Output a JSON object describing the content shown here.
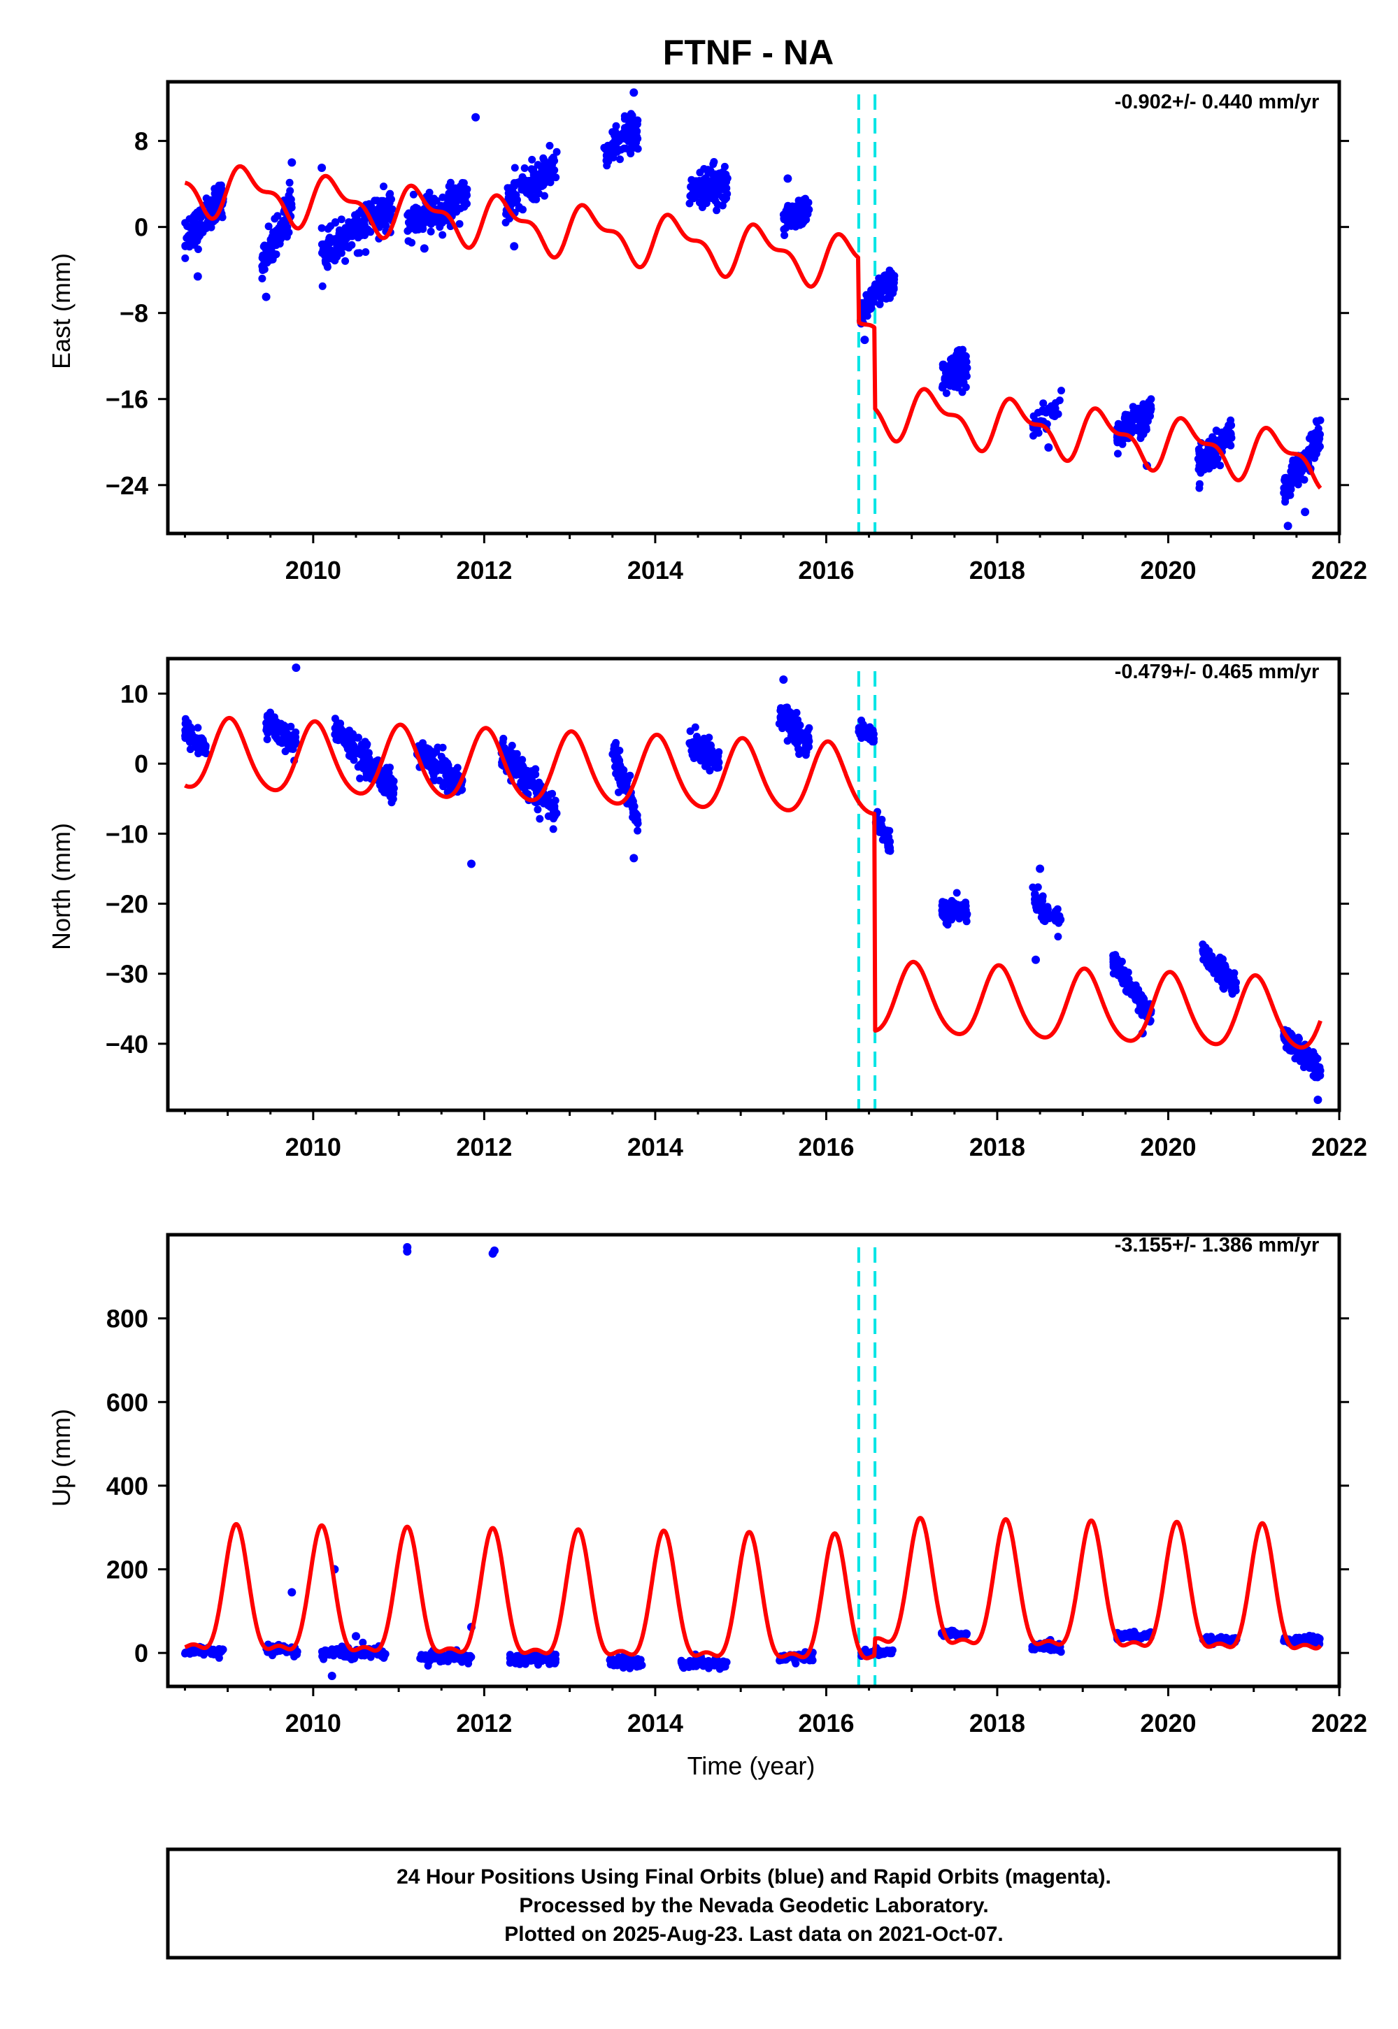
{
  "title": "FTNF - NA",
  "chart_data": [
    {
      "type": "scatter",
      "ylabel": "East (mm)",
      "rate": "-0.902+/- 0.440 mm/yr",
      "xlim": [
        2008.3,
        2022.0
      ],
      "ylim": [
        -28.5,
        13.5
      ],
      "xticks": [
        2010,
        2012,
        2014,
        2016,
        2018,
        2020,
        2022
      ],
      "yticks": [
        8,
        0,
        -8,
        -16,
        -24
      ],
      "ytick_labels": [
        "8",
        "0",
        "−8",
        "−16",
        "−24"
      ],
      "offsets": [
        2016.38,
        2016.57
      ],
      "colors": {
        "observations": "#0000ff",
        "model": "#ff0000",
        "offsets": "#00e5e5"
      },
      "model": {
        "base": 3.8,
        "slope": -0.902,
        "start": 2008.5,
        "end": 2021.78,
        "steps": [
          {
            "t": 2016.38,
            "dy": -6.0
          },
          {
            "t": 2016.57,
            "dy": -7.5
          }
        ],
        "annual_amp": 2.0,
        "annual_phase": 0.25,
        "semiannual_amp": 1.0,
        "semiannual_phase": 0.1
      },
      "clusters": [
        {
          "t0": 2008.5,
          "t1": 2008.95,
          "y0": -1.5,
          "y1": 3.0,
          "spread": 1.6,
          "n": 120
        },
        {
          "t0": 2009.4,
          "t1": 2009.75,
          "y0": -3.5,
          "y1": 2.0,
          "spread": 1.6,
          "n": 110
        },
        {
          "t0": 2010.1,
          "t1": 2010.95,
          "y0": -2.5,
          "y1": 2.0,
          "spread": 1.6,
          "n": 200
        },
        {
          "t0": 2011.1,
          "t1": 2011.8,
          "y0": 0.0,
          "y1": 3.0,
          "spread": 1.6,
          "n": 170
        },
        {
          "t0": 2012.25,
          "t1": 2012.85,
          "y0": 2.0,
          "y1": 6.0,
          "spread": 1.6,
          "n": 150
        },
        {
          "t0": 2013.4,
          "t1": 2013.8,
          "y0": 7.0,
          "y1": 9.0,
          "spread": 1.5,
          "n": 110
        },
        {
          "t0": 2014.4,
          "t1": 2014.85,
          "y0": 3.0,
          "y1": 4.5,
          "spread": 1.6,
          "n": 120
        },
        {
          "t0": 2015.5,
          "t1": 2015.8,
          "y0": 0.5,
          "y1": 1.5,
          "spread": 1.3,
          "n": 80
        },
        {
          "t0": 2016.4,
          "t1": 2016.58,
          "y0": -8.5,
          "y1": -6.0,
          "spread": 1.0,
          "n": 60
        },
        {
          "t0": 2016.6,
          "t1": 2016.8,
          "y0": -6.0,
          "y1": -5.0,
          "spread": 1.2,
          "n": 50
        },
        {
          "t0": 2017.35,
          "t1": 2017.65,
          "y0": -14.0,
          "y1": -13.0,
          "spread": 1.5,
          "n": 90
        },
        {
          "t0": 2018.4,
          "t1": 2018.75,
          "y0": -18.5,
          "y1": -16.5,
          "spread": 1.1,
          "n": 40
        },
        {
          "t0": 2019.4,
          "t1": 2019.8,
          "y0": -19.5,
          "y1": -17.0,
          "spread": 1.3,
          "n": 110
        },
        {
          "t0": 2020.35,
          "t1": 2020.75,
          "y0": -22.0,
          "y1": -19.0,
          "spread": 1.3,
          "n": 110
        },
        {
          "t0": 2021.35,
          "t1": 2021.78,
          "y0": -24.5,
          "y1": -19.5,
          "spread": 1.4,
          "n": 130
        }
      ],
      "outliers": [
        [
          2008.65,
          -4.6
        ],
        [
          2009.45,
          -6.5
        ],
        [
          2009.75,
          6.0
        ],
        [
          2010.1,
          5.5
        ],
        [
          2010.75,
          0.3
        ],
        [
          2011.3,
          -2.0
        ],
        [
          2011.9,
          10.2
        ],
        [
          2012.35,
          -1.8
        ],
        [
          2013.75,
          12.5
        ],
        [
          2015.55,
          4.5
        ],
        [
          2016.45,
          -10.5
        ],
        [
          2018.6,
          -20.5
        ],
        [
          2019.75,
          -22.2
        ],
        [
          2021.4,
          -27.8
        ],
        [
          2021.6,
          -26.5
        ]
      ]
    },
    {
      "type": "scatter",
      "ylabel": "North (mm)",
      "rate": "-0.479+/- 0.465 mm/yr",
      "xlim": [
        2008.3,
        2022.0
      ],
      "ylim": [
        -49.5,
        15.0
      ],
      "xticks": [
        2010,
        2012,
        2014,
        2016,
        2018,
        2020,
        2022
      ],
      "yticks": [
        10,
        0,
        -10,
        -20,
        -30,
        -40
      ],
      "ytick_labels": [
        "10",
        "0",
        "−10",
        "−20",
        "−30",
        "−40"
      ],
      "offsets": [
        2016.38,
        2016.57
      ],
      "colors": {
        "observations": "#0000ff",
        "model": "#ff0000",
        "offsets": "#00e5e5"
      },
      "model": {
        "base": 1.2,
        "slope": -0.479,
        "start": 2008.5,
        "end": 2021.78,
        "steps": [
          {
            "t": 2016.57,
            "dy": -31.0
          }
        ],
        "annual_amp": 5.0,
        "annual_phase": 0.03,
        "semiannual_amp": 0.6,
        "semiannual_phase": 0.0
      },
      "clusters": [
        {
          "t0": 2008.5,
          "t1": 2008.75,
          "y0": 5.0,
          "y1": 1.5,
          "spread": 1.5,
          "n": 70
        },
        {
          "t0": 2009.45,
          "t1": 2009.8,
          "y0": 6.0,
          "y1": 2.5,
          "spread": 1.8,
          "n": 110
        },
        {
          "t0": 2010.25,
          "t1": 2010.95,
          "y0": 5.0,
          "y1": -4.0,
          "spread": 2.0,
          "n": 200
        },
        {
          "t0": 2011.2,
          "t1": 2011.75,
          "y0": 2.0,
          "y1": -3.5,
          "spread": 2.0,
          "n": 150
        },
        {
          "t0": 2012.2,
          "t1": 2012.85,
          "y0": 2.0,
          "y1": -7.0,
          "spread": 2.0,
          "n": 170
        },
        {
          "t0": 2013.5,
          "t1": 2013.8,
          "y0": 2.0,
          "y1": -8.0,
          "spread": 2.0,
          "n": 100
        },
        {
          "t0": 2014.4,
          "t1": 2014.75,
          "y0": 3.0,
          "y1": 0.5,
          "spread": 1.8,
          "n": 110
        },
        {
          "t0": 2015.45,
          "t1": 2015.8,
          "y0": 7.0,
          "y1": 3.0,
          "spread": 1.8,
          "n": 110
        },
        {
          "t0": 2016.38,
          "t1": 2016.56,
          "y0": 5.0,
          "y1": 4.0,
          "spread": 1.0,
          "n": 50
        },
        {
          "t0": 2016.58,
          "t1": 2016.75,
          "y0": -8.0,
          "y1": -12.0,
          "spread": 1.5,
          "n": 50
        },
        {
          "t0": 2017.35,
          "t1": 2017.65,
          "y0": -21.0,
          "y1": -21.0,
          "spread": 1.3,
          "n": 90
        },
        {
          "t0": 2018.4,
          "t1": 2018.75,
          "y0": -19.0,
          "y1": -23.0,
          "spread": 1.8,
          "n": 50
        },
        {
          "t0": 2019.35,
          "t1": 2019.8,
          "y0": -28.0,
          "y1": -36.0,
          "spread": 1.5,
          "n": 120
        },
        {
          "t0": 2020.4,
          "t1": 2020.8,
          "y0": -27.0,
          "y1": -32.0,
          "spread": 1.5,
          "n": 110
        },
        {
          "t0": 2021.35,
          "t1": 2021.78,
          "y0": -39.0,
          "y1": -44.0,
          "spread": 1.5,
          "n": 140
        }
      ],
      "outliers": [
        [
          2009.8,
          13.7
        ],
        [
          2011.85,
          -14.3
        ],
        [
          2013.75,
          -13.5
        ],
        [
          2015.5,
          12.0
        ],
        [
          2018.5,
          -15.0
        ],
        [
          2018.45,
          -28.0
        ],
        [
          2019.7,
          -38.5
        ],
        [
          2021.75,
          -48.0
        ]
      ]
    },
    {
      "type": "scatter",
      "ylabel": "Up (mm)",
      "xlabel": "Time (year)",
      "rate": "-3.155+/- 1.386 mm/yr",
      "xlim": [
        2008.3,
        2022.0
      ],
      "ylim": [
        -80,
        1000
      ],
      "xticks": [
        2010,
        2012,
        2014,
        2016,
        2018,
        2020,
        2022
      ],
      "yticks": [
        800,
        600,
        400,
        200,
        0
      ],
      "ytick_labels": [
        "800",
        "600",
        "400",
        "200",
        "0"
      ],
      "offsets": [
        2016.38,
        2016.57
      ],
      "colors": {
        "observations": "#0000ff",
        "model": "#ff0000",
        "offsets": "#00e5e5"
      },
      "model": {
        "base": 10,
        "slope": -3.155,
        "start": 2008.5,
        "end": 2021.78,
        "steps": [
          {
            "t": 2016.57,
            "dy": 40
          }
        ],
        "pulse_amp": 320,
        "pulse_center": 0.1,
        "pulse_width": 0.14,
        "secondary_amp": 30,
        "secondary_center": 0.6,
        "secondary_width": 0.1
      },
      "clusters": [
        {
          "t0": 2008.5,
          "t1": 2008.95,
          "y0": 5,
          "y1": 5,
          "spread": 10,
          "n": 60
        },
        {
          "t0": 2009.45,
          "t1": 2009.85,
          "y0": 8,
          "y1": 8,
          "spread": 10,
          "n": 60
        },
        {
          "t0": 2010.1,
          "t1": 2010.85,
          "y0": 0,
          "y1": 0,
          "spread": 12,
          "n": 110
        },
        {
          "t0": 2011.25,
          "t1": 2011.85,
          "y0": -10,
          "y1": -10,
          "spread": 12,
          "n": 90
        },
        {
          "t0": 2012.3,
          "t1": 2012.85,
          "y0": -15,
          "y1": -15,
          "spread": 12,
          "n": 80
        },
        {
          "t0": 2013.45,
          "t1": 2013.85,
          "y0": -20,
          "y1": -20,
          "spread": 12,
          "n": 60
        },
        {
          "t0": 2014.3,
          "t1": 2014.85,
          "y0": -25,
          "y1": -25,
          "spread": 12,
          "n": 80
        },
        {
          "t0": 2015.45,
          "t1": 2015.85,
          "y0": -10,
          "y1": -10,
          "spread": 10,
          "n": 60
        },
        {
          "t0": 2016.4,
          "t1": 2016.78,
          "y0": 0,
          "y1": 0,
          "spread": 10,
          "n": 50
        },
        {
          "t0": 2017.35,
          "t1": 2017.65,
          "y0": 45,
          "y1": 45,
          "spread": 8,
          "n": 50
        },
        {
          "t0": 2018.4,
          "t1": 2018.75,
          "y0": 15,
          "y1": 15,
          "spread": 10,
          "n": 50
        },
        {
          "t0": 2019.4,
          "t1": 2019.8,
          "y0": 40,
          "y1": 40,
          "spread": 8,
          "n": 70
        },
        {
          "t0": 2020.4,
          "t1": 2020.8,
          "y0": 30,
          "y1": 30,
          "spread": 8,
          "n": 70
        },
        {
          "t0": 2021.35,
          "t1": 2021.78,
          "y0": 30,
          "y1": 30,
          "spread": 8,
          "n": 80
        }
      ],
      "outliers": [
        [
          2011.1,
          960
        ],
        [
          2011.1,
          970
        ],
        [
          2012.1,
          955
        ],
        [
          2012.12,
          962
        ],
        [
          2009.75,
          145
        ],
        [
          2010.25,
          200
        ],
        [
          2010.22,
          -55
        ],
        [
          2011.85,
          62
        ],
        [
          2010.5,
          40
        ]
      ]
    }
  ],
  "footer": {
    "line1": "24 Hour Positions Using Final Orbits (blue) and Rapid Orbits (magenta).",
    "line2": "Processed by the Nevada Geodetic Laboratory.",
    "line3": "Plotted on 2025-Aug-23. Last data on 2021-Oct-07."
  }
}
